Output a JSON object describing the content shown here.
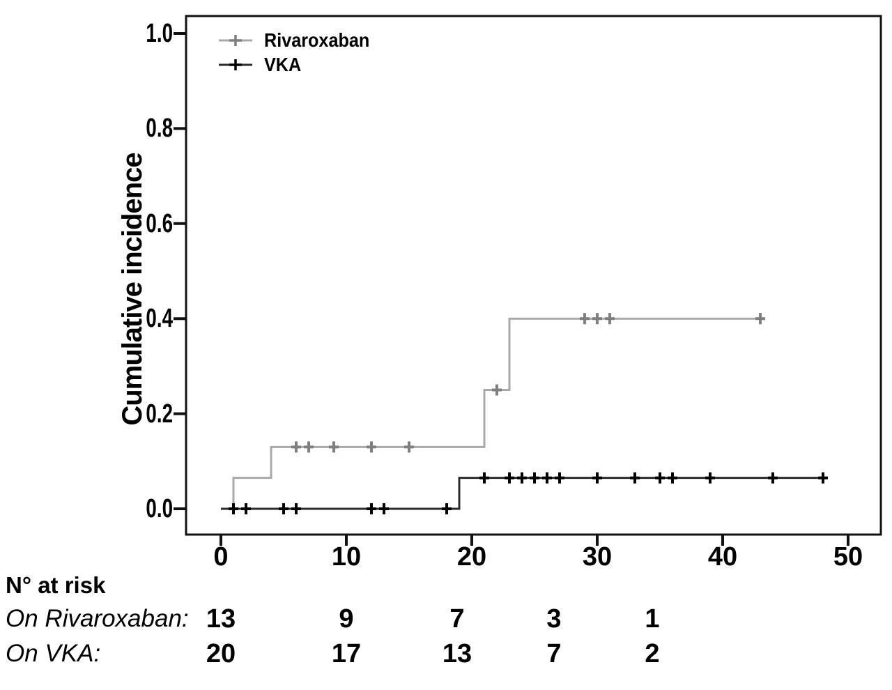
{
  "figure": {
    "background": "#ffffff",
    "frame_color": "#111111",
    "text_color": "#000000"
  },
  "chart_data": {
    "type": "line",
    "subtype": "kaplan-meier-step",
    "title": "",
    "xlabel": "",
    "ylabel": "Cumulative incidence",
    "xlim": [
      -2.8,
      52.6
    ],
    "ylim": [
      -0.054,
      1.037
    ],
    "xticks": [
      0,
      10,
      20,
      30,
      40,
      50
    ],
    "xtick_labels": [
      "0",
      "10",
      "20",
      "30",
      "40",
      "50"
    ],
    "yticks": [
      0.0,
      0.2,
      0.4,
      0.6,
      0.8,
      1.0
    ],
    "ytick_labels": [
      "0.0",
      "0.2",
      "0.4",
      "0.6",
      "0.8",
      "1.0"
    ],
    "grid": false,
    "legend_position": "top-left-inside",
    "series": [
      {
        "name": "Rivaroxaban",
        "color": "#a9a9a9",
        "marker_color": "#7f7f7f",
        "marker": "plus",
        "step_points": [
          [
            0,
            0
          ],
          [
            1,
            0.065
          ],
          [
            4,
            0.13
          ],
          [
            21,
            0.25
          ],
          [
            23,
            0.4
          ]
        ],
        "end_x": 43,
        "censor_marks": [
          [
            6,
            0.13
          ],
          [
            7,
            0.13
          ],
          [
            9,
            0.13
          ],
          [
            12,
            0.13
          ],
          [
            15,
            0.13
          ],
          [
            22,
            0.25
          ],
          [
            29,
            0.4
          ],
          [
            30,
            0.4
          ],
          [
            31,
            0.4
          ],
          [
            43,
            0.4
          ]
        ]
      },
      {
        "name": "VKA",
        "color": "#2b2b2b",
        "marker_color": "#000000",
        "marker": "plus",
        "step_points": [
          [
            0,
            0
          ],
          [
            19,
            0.065
          ]
        ],
        "end_x": 48,
        "censor_marks": [
          [
            1,
            0
          ],
          [
            2,
            0
          ],
          [
            5,
            0
          ],
          [
            6,
            0
          ],
          [
            12,
            0
          ],
          [
            13,
            0
          ],
          [
            18,
            0
          ],
          [
            21,
            0.065
          ],
          [
            23,
            0.065
          ],
          [
            24,
            0.065
          ],
          [
            25,
            0.065
          ],
          [
            26,
            0.065
          ],
          [
            27,
            0.065
          ],
          [
            30,
            0.065
          ],
          [
            33,
            0.065
          ],
          [
            35,
            0.065
          ],
          [
            36,
            0.065
          ],
          [
            39,
            0.065
          ],
          [
            44,
            0.065
          ],
          [
            48,
            0.065
          ]
        ]
      }
    ]
  },
  "risk_table": {
    "header": "N° at risk",
    "time_points": [
      0,
      10,
      20,
      30,
      40
    ],
    "rows": [
      {
        "label": "On Rivaroxaban:",
        "values": [
          "13",
          "9",
          "7",
          "3",
          "1"
        ]
      },
      {
        "label": "On VKA:",
        "values": [
          "20",
          "17",
          "13",
          "7",
          "2"
        ]
      }
    ]
  }
}
